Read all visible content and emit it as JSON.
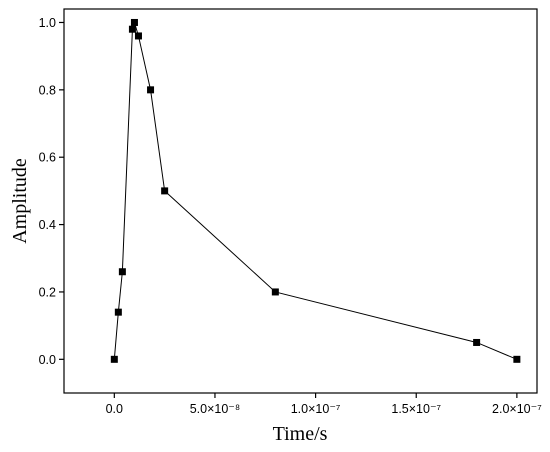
{
  "chart_data": {
    "type": "line",
    "xlabel": "Time/s",
    "ylabel": "Amplitude",
    "xlim": [
      -2.5e-08,
      2.1e-07
    ],
    "ylim": [
      -0.1,
      1.04
    ],
    "x_ticks": [
      {
        "value": 0,
        "label": "0.0"
      },
      {
        "value": 5e-08,
        "label": "5.0×10⁻⁸"
      },
      {
        "value": 1e-07,
        "label": "1.0×10⁻⁷"
      },
      {
        "value": 1.5e-07,
        "label": "1.5×10⁻⁷"
      },
      {
        "value": 2e-07,
        "label": "2.0×10⁻⁷"
      }
    ],
    "y_ticks": [
      {
        "value": 0,
        "label": "0.0"
      },
      {
        "value": 0.2,
        "label": "0.2"
      },
      {
        "value": 0.4,
        "label": "0.4"
      },
      {
        "value": 0.6,
        "label": "0.6"
      },
      {
        "value": 0.8,
        "label": "0.8"
      },
      {
        "value": 1.0,
        "label": "1.0"
      }
    ],
    "series": [
      {
        "marker": "square",
        "color": "#000000",
        "points": [
          {
            "x": 0,
            "y": 0.0
          },
          {
            "x": 2e-09,
            "y": 0.14
          },
          {
            "x": 4e-09,
            "y": 0.26
          },
          {
            "x": 9e-09,
            "y": 0.98
          },
          {
            "x": 1e-08,
            "y": 1.0
          },
          {
            "x": 1.2e-08,
            "y": 0.96
          },
          {
            "x": 1.8e-08,
            "y": 0.8
          },
          {
            "x": 2.5e-08,
            "y": 0.5
          },
          {
            "x": 8e-08,
            "y": 0.2
          },
          {
            "x": 1.8e-07,
            "y": 0.05
          },
          {
            "x": 2e-07,
            "y": 0.0
          }
        ]
      }
    ],
    "grid": false,
    "legend": "none"
  }
}
